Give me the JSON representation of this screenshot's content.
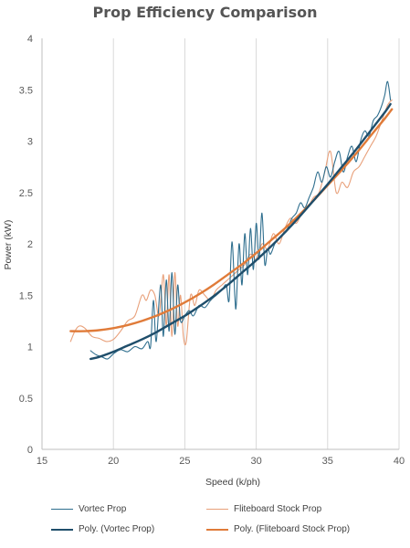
{
  "chart_data": {
    "type": "line",
    "title": "Prop Efficiency Comparison",
    "xlabel": "Speed (k/ph)",
    "ylabel": "Power (kW)",
    "xlim": [
      15,
      40
    ],
    "ylim": [
      0,
      4
    ],
    "x_ticks": [
      "15",
      "20",
      "25",
      "30",
      "35",
      "40"
    ],
    "y_ticks": [
      "0",
      "0.5",
      "1",
      "1.5",
      "2",
      "2.5",
      "3",
      "3.5",
      "4"
    ],
    "grid": "vertical",
    "legend_position": "bottom",
    "colors": {
      "vortec": "#2E6E8E",
      "fliteboard": "#E8A07A",
      "vortec_trend": "#1F4E6B",
      "fliteboard_trend": "#E07B39",
      "grid": "#D9D9D9",
      "axis": "#BFBFBF"
    },
    "series": [
      {
        "name": "Vortec Prop",
        "style": "thin",
        "x": [
          18.4,
          18.8,
          19.2,
          19.6,
          20.0,
          20.5,
          21.0,
          21.5,
          22.0,
          22.4,
          22.6,
          22.8,
          23.0,
          23.3,
          23.5,
          23.7,
          23.9,
          24.1,
          24.3,
          24.5,
          24.7,
          25.0,
          25.3,
          25.6,
          26.0,
          26.4,
          26.8,
          27.2,
          27.6,
          27.9,
          28.1,
          28.3,
          28.5,
          28.6,
          28.8,
          29.0,
          29.2,
          29.4,
          29.6,
          29.8,
          30.0,
          30.2,
          30.4,
          30.6,
          30.8,
          31.0,
          31.3,
          31.6,
          31.9,
          32.2,
          32.5,
          32.8,
          33.1,
          33.4,
          33.7,
          34.0,
          34.3,
          34.6,
          34.9,
          35.2,
          35.5,
          35.8,
          36.1,
          36.4,
          36.7,
          37.0,
          37.3,
          37.6,
          37.9,
          38.2,
          38.5,
          38.8,
          39.0,
          39.2,
          39.4
        ],
        "values": [
          0.96,
          0.92,
          0.9,
          0.88,
          0.93,
          0.97,
          0.95,
          1.0,
          0.98,
          1.05,
          1.0,
          1.45,
          1.05,
          1.6,
          1.1,
          1.65,
          1.15,
          1.72,
          1.12,
          1.6,
          1.25,
          1.3,
          1.35,
          1.3,
          1.4,
          1.38,
          1.45,
          1.5,
          1.55,
          1.6,
          1.45,
          2.02,
          1.5,
          1.4,
          2.0,
          1.6,
          2.1,
          1.7,
          2.15,
          1.75,
          2.2,
          1.85,
          2.3,
          1.8,
          1.95,
          1.9,
          2.0,
          2.05,
          2.1,
          2.15,
          2.25,
          2.3,
          2.4,
          2.35,
          2.45,
          2.55,
          2.7,
          2.6,
          2.75,
          2.65,
          2.8,
          2.9,
          2.7,
          2.85,
          2.95,
          2.8,
          3.0,
          3.1,
          3.05,
          3.2,
          3.25,
          3.35,
          3.45,
          3.58,
          3.4
        ]
      },
      {
        "name": "Fliteboard Stock Prop",
        "style": "thin",
        "x": [
          17.0,
          17.3,
          17.6,
          18.0,
          18.5,
          19.0,
          19.5,
          20.0,
          20.5,
          21.0,
          21.5,
          22.0,
          22.3,
          22.6,
          22.9,
          23.2,
          23.5,
          23.7,
          23.9,
          24.1,
          24.3,
          24.5,
          24.7,
          24.9,
          25.1,
          25.4,
          25.7,
          26.0,
          26.4,
          26.8,
          27.2,
          27.6,
          28.0,
          28.4,
          28.8,
          29.2,
          29.6,
          30.0,
          30.4,
          30.8,
          31.2,
          31.6,
          32.0,
          32.4,
          32.8,
          33.2,
          33.6,
          34.0,
          34.4,
          34.8,
          35.2,
          35.6,
          36.0,
          36.4,
          36.8,
          37.2,
          37.6,
          38.0,
          38.4,
          38.8,
          39.2,
          39.5
        ],
        "values": [
          1.05,
          1.15,
          1.2,
          1.18,
          1.1,
          1.08,
          1.05,
          1.07,
          1.15,
          1.25,
          1.3,
          1.5,
          1.45,
          1.55,
          1.5,
          1.3,
          1.7,
          1.2,
          1.7,
          1.1,
          1.72,
          1.2,
          1.5,
          1.1,
          1.05,
          1.5,
          1.4,
          1.55,
          1.5,
          1.45,
          1.55,
          1.6,
          1.65,
          1.7,
          1.75,
          1.8,
          1.9,
          1.85,
          2.0,
          1.95,
          2.1,
          2.0,
          2.15,
          2.25,
          2.2,
          2.3,
          2.35,
          2.45,
          2.5,
          2.7,
          2.9,
          2.5,
          2.6,
          2.55,
          2.7,
          2.75,
          2.85,
          2.95,
          3.05,
          3.2,
          3.35,
          3.4
        ]
      },
      {
        "name": "Poly. (Vortec Prop)",
        "style": "trend",
        "x": [
          18.4,
          19.0,
          20.0,
          21.0,
          22.0,
          23.0,
          24.0,
          25.0,
          26.0,
          27.0,
          28.0,
          29.0,
          30.0,
          31.0,
          32.0,
          33.0,
          34.0,
          35.0,
          36.0,
          37.0,
          38.0,
          39.0,
          39.4
        ],
        "values": [
          0.88,
          0.9,
          0.95,
          1.01,
          1.07,
          1.14,
          1.22,
          1.3,
          1.39,
          1.49,
          1.6,
          1.72,
          1.84,
          1.97,
          2.11,
          2.26,
          2.42,
          2.58,
          2.75,
          2.92,
          3.1,
          3.28,
          3.36
        ]
      },
      {
        "name": "Poly. (Fliteboard Stock Prop)",
        "style": "trend",
        "x": [
          17.0,
          18.0,
          19.0,
          20.0,
          21.0,
          22.0,
          23.0,
          24.0,
          25.0,
          26.0,
          27.0,
          28.0,
          29.0,
          30.0,
          31.0,
          32.0,
          33.0,
          34.0,
          35.0,
          36.0,
          37.0,
          38.0,
          39.0,
          39.5
        ],
        "values": [
          1.15,
          1.15,
          1.16,
          1.18,
          1.21,
          1.25,
          1.3,
          1.36,
          1.43,
          1.51,
          1.6,
          1.7,
          1.8,
          1.91,
          2.03,
          2.15,
          2.28,
          2.42,
          2.57,
          2.72,
          2.88,
          3.05,
          3.22,
          3.31
        ]
      }
    ],
    "legend": [
      {
        "label": "Vortec Prop",
        "series": 0
      },
      {
        "label": "Fliteboard Stock Prop",
        "series": 1
      },
      {
        "label": "Poly. (Vortec Prop)",
        "series": 2
      },
      {
        "label": "Poly. (Fliteboard Stock Prop)",
        "series": 3
      }
    ]
  }
}
